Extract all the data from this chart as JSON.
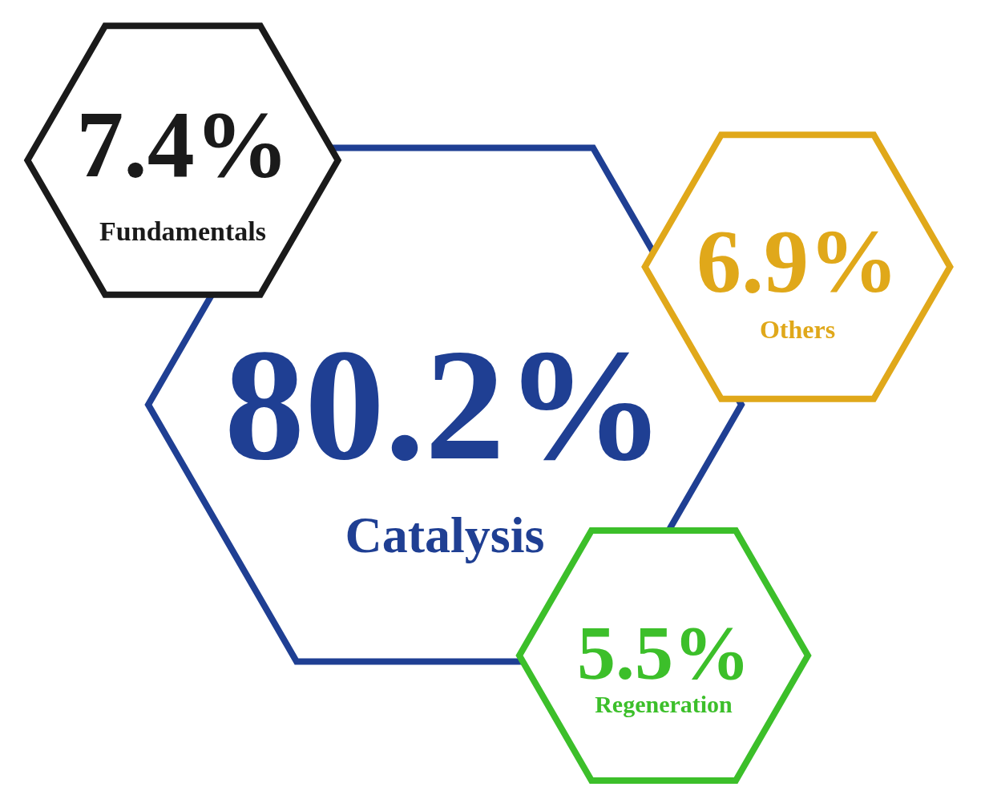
{
  "chart_data": {
    "type": "other",
    "categories": [
      "Fundamentals",
      "Catalysis",
      "Others",
      "Regeneration"
    ],
    "values": [
      7.4,
      80.2,
      6.9,
      5.5
    ],
    "value_labels": [
      "7.4%",
      "80.2%",
      "6.9%",
      "5.5%"
    ],
    "colors": [
      "#1a1a1a",
      "#1f3f93",
      "#e0a81a",
      "#3cbf2a"
    ]
  }
}
